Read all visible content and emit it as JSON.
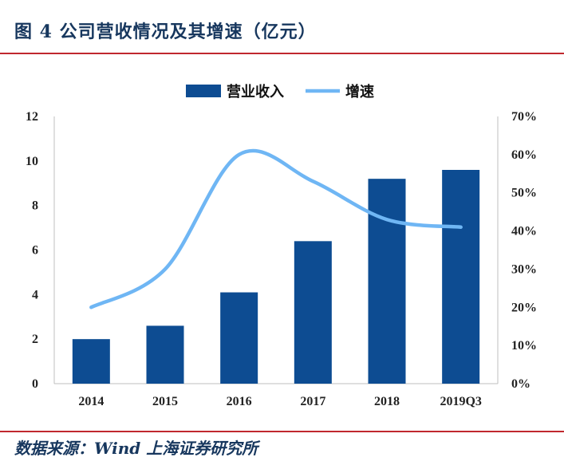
{
  "header": {
    "title": "图 4 公司营收情况及其增速（亿元）"
  },
  "footer": {
    "source": "数据来源：Wind  上海证券研究所"
  },
  "colors": {
    "bar": "#0d4c92",
    "line": "#6fb6f4",
    "rule": "#c0282e",
    "title": "#17375e"
  },
  "chart_data": {
    "type": "bar",
    "categories": [
      "2014",
      "2015",
      "2016",
      "2017",
      "2018",
      "2019Q3"
    ],
    "series": [
      {
        "name": "营业收入",
        "type": "bar",
        "axis": "left",
        "values": [
          2.0,
          2.6,
          4.1,
          6.4,
          9.2,
          9.6
        ]
      },
      {
        "name": "增速",
        "type": "line",
        "axis": "right",
        "smooth": true,
        "values": [
          0.2,
          0.3,
          0.6,
          0.53,
          0.43,
          0.41
        ]
      }
    ],
    "ylim_left": [
      0,
      12
    ],
    "yticks_left": [
      "0",
      "2",
      "4",
      "6",
      "8",
      "10",
      "12"
    ],
    "ylim_right": [
      0,
      0.7
    ],
    "yticks_right": [
      "0%",
      "10%",
      "20%",
      "30%",
      "40%",
      "50%",
      "60%",
      "70%"
    ],
    "legend": [
      {
        "label": "营业收入",
        "marker": "bar"
      },
      {
        "label": "增速",
        "marker": "line"
      }
    ],
    "legend_position": "top-center",
    "grid": false
  }
}
